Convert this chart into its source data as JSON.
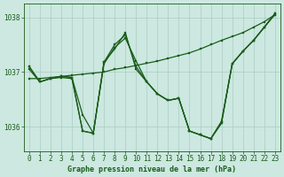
{
  "title": "Graphe pression niveau de la mer (hPa)",
  "bg_color": "#cce8e0",
  "grid_color": "#aaccc4",
  "line_color": "#1a5c1a",
  "marker_color": "#1a5c1a",
  "ylim": [
    1035.55,
    1038.25
  ],
  "yticks": [
    1036,
    1037,
    1038
  ],
  "xlim": [
    -0.5,
    23.5
  ],
  "xticks": [
    0,
    1,
    2,
    3,
    4,
    5,
    6,
    7,
    8,
    9,
    10,
    11,
    12,
    13,
    14,
    15,
    16,
    17,
    18,
    19,
    20,
    21,
    22,
    23
  ],
  "series1": [
    1037.1,
    1036.82,
    1036.88,
    1036.9,
    1036.88,
    1035.92,
    1035.88,
    1037.15,
    1037.45,
    1037.62,
    1037.2,
    1036.82,
    1036.6,
    1036.48,
    1036.52,
    1035.92,
    1035.85,
    1035.78,
    1036.08,
    1037.15,
    1037.38,
    1037.58,
    1037.82,
    1038.05
  ],
  "series2": [
    1036.88,
    1036.88,
    1036.9,
    1036.92,
    1036.94,
    1036.96,
    1036.98,
    1037.0,
    1037.05,
    1037.08,
    1037.12,
    1037.16,
    1037.2,
    1037.25,
    1037.3,
    1037.35,
    1037.42,
    1037.5,
    1037.58,
    1037.65,
    1037.72,
    1037.82,
    1037.92,
    1038.05
  ],
  "series3": [
    1037.1,
    1036.82,
    1036.88,
    1036.92,
    1036.9,
    1036.22,
    1035.88,
    1037.18,
    1037.5,
    1037.68,
    1037.1,
    1036.82,
    1036.6,
    1036.48,
    1036.52,
    1035.92,
    1035.85,
    1035.78,
    1036.1,
    1037.15,
    1037.38,
    1037.58,
    1037.82,
    1038.07
  ],
  "series4": [
    1037.05,
    1036.82,
    1036.88,
    1036.92,
    1036.9,
    1035.92,
    1035.88,
    1037.18,
    1037.42,
    1037.72,
    1037.05,
    1036.82,
    1036.6,
    1036.48,
    1036.52,
    1035.92,
    1035.85,
    1035.78,
    1036.06,
    1037.15,
    1037.38,
    1037.58,
    1037.82,
    1038.07
  ],
  "ylabel_fontsize": 6.0,
  "tick_fontsize": 5.5
}
